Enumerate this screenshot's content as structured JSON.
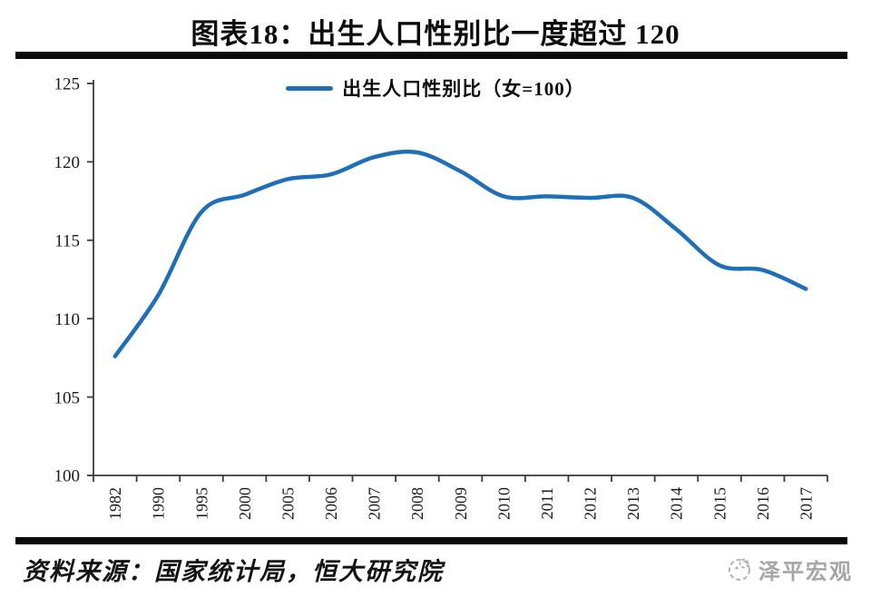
{
  "page": {
    "title": "图表18：出生人口性别比一度超过 120",
    "source_label": "资料来源：国家统计局，恒大研究院",
    "logo_text": "泽平宏观"
  },
  "chart_data": {
    "type": "line",
    "title": "图表18：出生人口性别比一度超过 120",
    "legend": "出生人口性别比（女=100）",
    "legend_position": "top-center",
    "x": [
      "1982",
      "1990",
      "1995",
      "2000",
      "2005",
      "2006",
      "2007",
      "2008",
      "2009",
      "2010",
      "2011",
      "2012",
      "2013",
      "2014",
      "2015",
      "2016",
      "2017"
    ],
    "series": [
      {
        "name": "出生人口性别比（女=100）",
        "values": [
          107.6,
          111.5,
          116.8,
          117.9,
          118.9,
          119.2,
          120.3,
          120.6,
          119.4,
          117.8,
          117.8,
          117.7,
          117.7,
          115.7,
          113.4,
          113.1,
          111.9
        ]
      }
    ],
    "ylim": [
      100,
      125
    ],
    "yticks": [
      100,
      105,
      110,
      115,
      120,
      125
    ],
    "grid": false,
    "smooth": true,
    "line_color": "#1e6fb8",
    "axis_color": "#3a3a3a"
  },
  "colors": {
    "accent_line": "#1e6fb8",
    "divider_bar": "#0a0a0a",
    "text": "#141414",
    "logo_gray": "#a6a6a6"
  }
}
